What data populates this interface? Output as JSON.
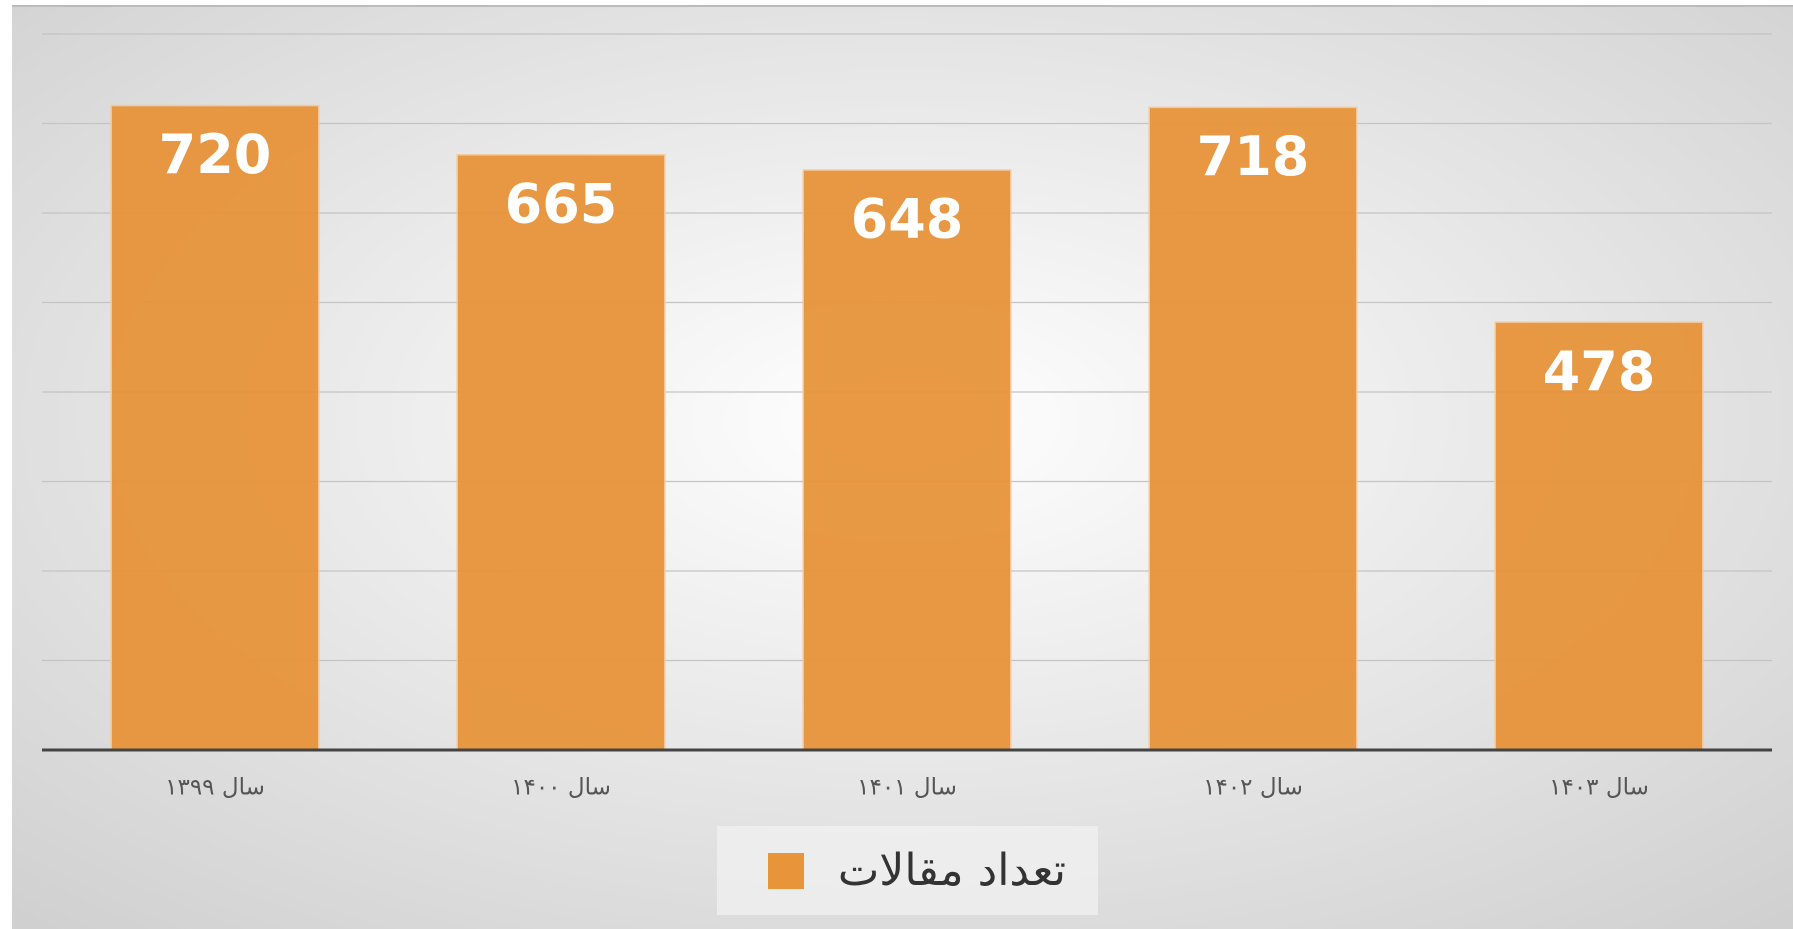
{
  "chart_data": {
    "type": "bar",
    "categories": [
      "سال ۱۳۹۹",
      "سال ۱۴۰۰",
      "سال ۱۴۰۱",
      "سال ۱۴۰۲",
      "سال ۱۴۰۳"
    ],
    "series": [
      {
        "name": "تعداد مقالات",
        "color": "#e8943a",
        "values": [
          720,
          665,
          648,
          718,
          478
        ]
      }
    ],
    "ylim": [
      0,
      800
    ],
    "yticks": [
      0,
      100,
      200,
      300,
      400,
      500,
      600,
      700,
      800
    ],
    "grid": true,
    "legend": "bottom"
  }
}
